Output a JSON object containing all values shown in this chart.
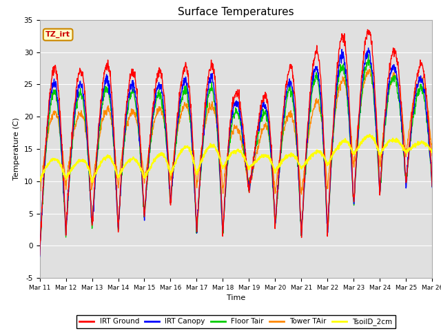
{
  "title": "Surface Temperatures",
  "xlabel": "Time",
  "ylabel": "Temperature (C)",
  "ylim": [
    -5,
    35
  ],
  "xlim": [
    0,
    360
  ],
  "bg_color": "#e0e0e0",
  "series": [
    {
      "label": "IRT Ground",
      "color": "#ff0000"
    },
    {
      "label": "IRT Canopy",
      "color": "#0000ff"
    },
    {
      "label": "Floor Tair",
      "color": "#00cc00"
    },
    {
      "label": "Tower TAir",
      "color": "#ff8800"
    },
    {
      "label": "TsoilD_2cm",
      "color": "#ffff00"
    }
  ],
  "xtick_labels": [
    "Mar 11",
    "Mar 12",
    "Mar 13",
    "Mar 14",
    "Mar 15",
    "Mar 16",
    "Mar 17",
    "Mar 18",
    "Mar 19",
    "Mar 20",
    "Mar 21",
    "Mar 22",
    "Mar 23",
    "Mar 24",
    "Mar 25",
    "Mar 26"
  ],
  "xtick_positions": [
    0,
    24,
    48,
    72,
    96,
    120,
    144,
    168,
    192,
    216,
    240,
    264,
    288,
    312,
    336,
    360
  ],
  "ytick_labels": [
    "-5",
    "0",
    "5",
    "10",
    "15",
    "20",
    "25",
    "30",
    "35"
  ],
  "ytick_values": [
    -5,
    0,
    5,
    10,
    15,
    20,
    25,
    30,
    35
  ],
  "annotation_text": "TZ_irt",
  "annotation_color": "#cc0000",
  "annotation_bg": "#ffffcc",
  "annotation_border": "#cc8800",
  "peak_temps": [
    27,
    27.5,
    26.8,
    29,
    25.5,
    28,
    27.5,
    28.5,
    19.5,
    26,
    29,
    31,
    33.5,
    33,
    28
  ],
  "night_temps": [
    -1,
    2,
    3,
    2.5,
    4.5,
    6.5,
    2,
    1.5,
    9,
    3,
    1.5,
    2,
    6,
    8,
    9.5
  ],
  "canopy_factor": 0.85,
  "floor_factor": 0.8,
  "tower_peaks": [
    20,
    21,
    20,
    22,
    20,
    22,
    21.5,
    22,
    15,
    21,
    20,
    24,
    27,
    27,
    26
  ],
  "tower_nights": [
    8,
    9,
    9,
    9,
    10,
    10,
    9,
    8.5,
    9,
    8,
    8,
    8.5,
    12,
    12,
    14
  ],
  "soil_peaks": [
    14,
    13,
    13.5,
    14,
    13,
    15,
    15.5,
    15.5,
    14,
    14,
    14,
    15,
    17,
    17,
    16
  ],
  "soil_nights": [
    10,
    10.5,
    10,
    10.5,
    10.5,
    11,
    11,
    12,
    12,
    11.5,
    12,
    12.5,
    14,
    14,
    14.5
  ]
}
